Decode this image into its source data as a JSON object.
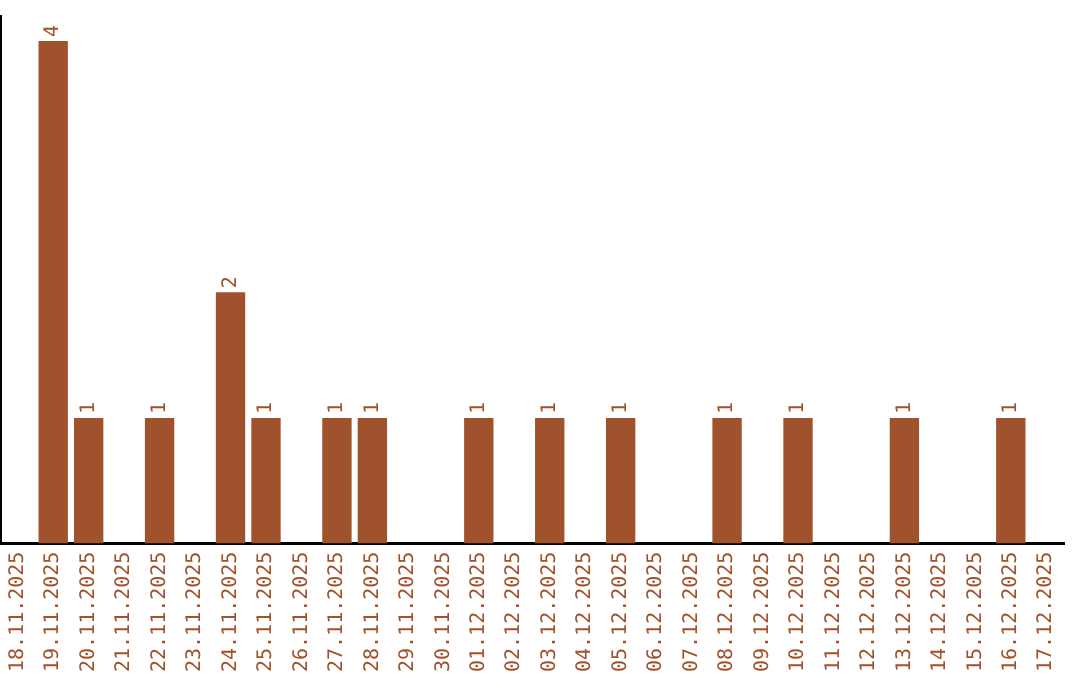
{
  "chart_data": {
    "type": "bar",
    "categories": [
      "18.11.2025",
      "19.11.2025",
      "20.11.2025",
      "21.11.2025",
      "22.11.2025",
      "23.11.2025",
      "24.11.2025",
      "25.11.2025",
      "26.11.2025",
      "27.11.2025",
      "28.11.2025",
      "29.11.2025",
      "30.11.2025",
      "01.12.2025",
      "02.12.2025",
      "03.12.2025",
      "04.12.2025",
      "05.12.2025",
      "06.12.2025",
      "07.12.2025",
      "08.12.2025",
      "09.12.2025",
      "10.12.2025",
      "11.12.2025",
      "12.12.2025",
      "13.12.2025",
      "14.12.2025",
      "15.12.2025",
      "16.12.2025",
      "17.12.2025"
    ],
    "values": [
      0,
      4,
      1,
      0,
      1,
      0,
      2,
      1,
      0,
      1,
      1,
      0,
      0,
      1,
      0,
      1,
      0,
      1,
      0,
      0,
      1,
      0,
      1,
      0,
      0,
      1,
      0,
      0,
      1,
      0
    ],
    "value_labels": [
      null,
      "4",
      "1",
      null,
      "1",
      null,
      "2",
      "1",
      null,
      "1",
      "1",
      null,
      null,
      "1",
      null,
      "1",
      null,
      "1",
      null,
      null,
      "1",
      null,
      "1",
      null,
      null,
      "1",
      null,
      null,
      "1",
      null
    ],
    "color": "#a0522d",
    "ylim": [
      0,
      4.2
    ],
    "tick_labels": "x",
    "grid": false,
    "legend": false
  }
}
